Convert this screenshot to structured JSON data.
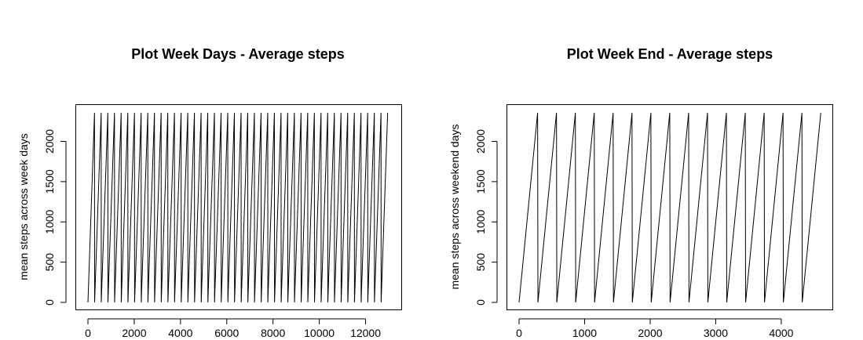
{
  "chart_data": [
    {
      "type": "line",
      "title": "Plot Week Days - Average steps",
      "xlabel": "",
      "ylabel": "mean steps across week days",
      "xlim": [
        0,
        13000
      ],
      "ylim": [
        0,
        2355
      ],
      "xticks": [
        0,
        2000,
        4000,
        6000,
        8000,
        10000,
        12000
      ],
      "yticks": [
        0,
        500,
        1000,
        1500,
        2000
      ],
      "grid": false,
      "series": [
        {
          "period": 288,
          "x_start": 0,
          "x_end": 12955,
          "y_min": 0,
          "y_max": 2355
        }
      ]
    },
    {
      "type": "line",
      "title": "Plot Week End - Average steps",
      "xlabel": "",
      "ylabel": "mean steps across weekend days",
      "xlim": [
        0,
        4600
      ],
      "ylim": [
        0,
        2355
      ],
      "xticks": [
        0,
        1000,
        2000,
        3000,
        4000
      ],
      "yticks": [
        0,
        500,
        1000,
        1500,
        2000
      ],
      "grid": false,
      "series": [
        {
          "period": 288,
          "x_start": 0,
          "x_end": 4607,
          "y_min": 0,
          "y_max": 2355
        }
      ]
    }
  ]
}
